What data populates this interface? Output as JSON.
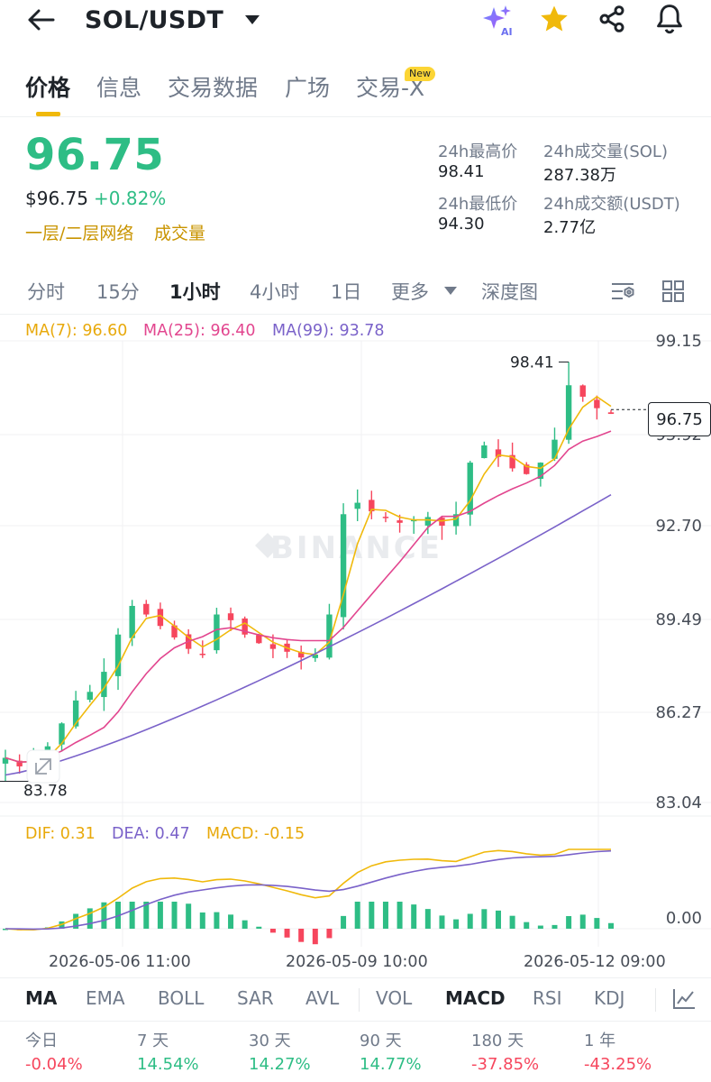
{
  "header": {
    "pair": "SOL/USDT",
    "icons": [
      "back-arrow-icon",
      "caret-down-icon",
      "ai-sparkle-icon",
      "star-icon",
      "share-icon",
      "bell-icon"
    ],
    "ai_label": "AI"
  },
  "tabs": [
    {
      "label": "价格",
      "active": true
    },
    {
      "label": "信息"
    },
    {
      "label": "交易数据"
    },
    {
      "label": "广场"
    },
    {
      "label": "交易-X",
      "badge": "New"
    }
  ],
  "price": {
    "last": "96.75",
    "usd": "$96.75",
    "change": "+0.82%",
    "tags": [
      "一层/二层网络",
      "成交量"
    ]
  },
  "stats": {
    "high_label": "24h最高价",
    "high": "98.41",
    "low_label": "24h最低价",
    "low": "94.30",
    "vol_label": "24h成交量(SOL)",
    "vol": "287.38万",
    "amount_label": "24h成交额(USDT)",
    "amount": "2.77亿"
  },
  "intervals": {
    "items": [
      "分时",
      "15分",
      "1小时",
      "4小时",
      "1日",
      "更多",
      "深度图"
    ],
    "active": "1小时",
    "icons": [
      "chart-settings-icon",
      "grid-layout-icon"
    ]
  },
  "ma_legend": {
    "ma7": "MA(7): 96.60",
    "ma25": "MA(25): 96.40",
    "ma99": "MA(99): 93.78"
  },
  "price_axis": {
    "ticks": [
      "99.15",
      "95.92",
      "92.70",
      "89.49",
      "86.27",
      "83.04"
    ],
    "last_price_box": "96.75",
    "high_marker": "98.41",
    "low_marker": "83.78",
    "watermark": "BINANCE"
  },
  "macd_legend": {
    "dif": "DIF: 0.31",
    "dea": "DEA: 0.47",
    "macd": "MACD: -0.15",
    "zero_tick": "0.00"
  },
  "time_axis": [
    "2026-05-06 11:00",
    "2026-05-09 10:00",
    "2026-05-12 09:00"
  ],
  "indicators": {
    "main": [
      "MA",
      "EMA",
      "BOLL",
      "SAR",
      "AVL"
    ],
    "sub": [
      "VOL",
      "MACD",
      "RSI",
      "KDJ"
    ],
    "active_main": "MA",
    "active_sub": "MACD"
  },
  "periods": [
    {
      "label": "今日",
      "value": "-0.04%",
      "dir": "down"
    },
    {
      "label": "7 天",
      "value": "14.54%",
      "dir": "up"
    },
    {
      "label": "30 天",
      "value": "14.27%",
      "dir": "up"
    },
    {
      "label": "90 天",
      "value": "14.77%",
      "dir": "up"
    },
    {
      "label": "180 天",
      "value": "-37.85%",
      "dir": "down"
    },
    {
      "label": "1 年",
      "value": "-43.25%",
      "dir": "down"
    }
  ],
  "colors": {
    "up": "#2ebd85",
    "down": "#f6465d",
    "ma7": "#f0b90b",
    "ma25": "#e2468f",
    "ma99": "#7a62c9",
    "brand": "#f0b90b"
  },
  "chart_data": {
    "type": "candlestick",
    "interval": "1h",
    "y_ticks": [
      99.15,
      95.92,
      92.7,
      89.49,
      86.27,
      83.04
    ],
    "range_high": 98.41,
    "range_low": 83.78,
    "close_approx": [
      84.6,
      84.3,
      84.5,
      85.0,
      85.8,
      86.6,
      86.9,
      87.6,
      88.9,
      89.9,
      89.6,
      89.2,
      88.8,
      88.4,
      88.2,
      89.6,
      89.4,
      88.9,
      88.6,
      88.4,
      88.3,
      88.1,
      88.2,
      89.6,
      93.1,
      93.5,
      93.2,
      93.0,
      92.8,
      92.9,
      93.0,
      92.7,
      93.1,
      94.9,
      95.5,
      95.1,
      94.7,
      94.5,
      94.9,
      95.7,
      97.6,
      97.2,
      96.8,
      96.6
    ],
    "ma": [
      {
        "name": "MA(7)",
        "last": 96.6
      },
      {
        "name": "MA(25)",
        "last": 96.4
      },
      {
        "name": "MA(99)",
        "last": 93.78
      }
    ],
    "macd": {
      "dif": 0.31,
      "dea": 0.47,
      "hist": -0.15
    }
  }
}
